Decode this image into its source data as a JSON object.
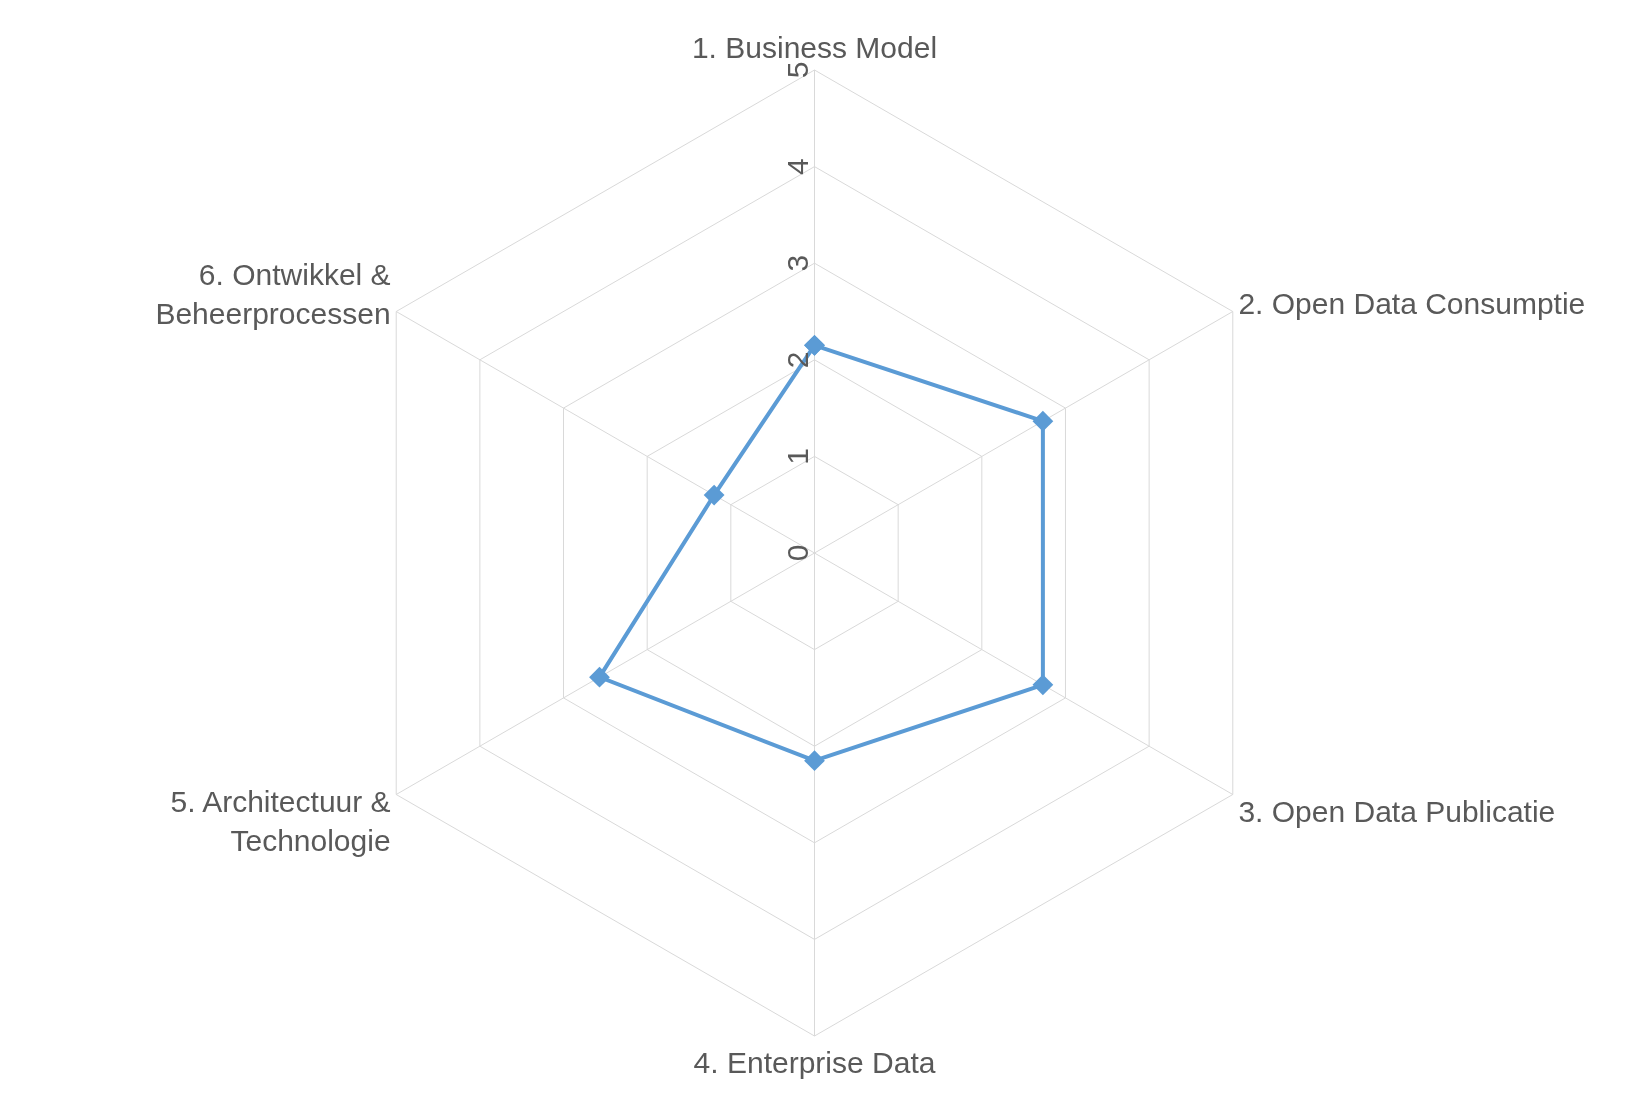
{
  "chart_data": {
    "type": "radar",
    "categories": [
      "1. Business Model",
      "2. Open Data Consumptie",
      "3. Open Data Publicatie",
      "4. Enterprise Data",
      "5. Architectuur &\nTechnologie",
      "6. Ontwikkel &\nBeheerprocessen"
    ],
    "series": [
      {
        "color": "#5b9bd5",
        "values": [
          2.15,
          2.73,
          2.73,
          2.15,
          2.57,
          1.2
        ]
      }
    ],
    "ylim": [
      0,
      5
    ],
    "yticks": [
      0,
      1,
      2,
      3,
      4,
      5
    ],
    "grid": true,
    "marker": "diamond",
    "line_style": "solid"
  }
}
